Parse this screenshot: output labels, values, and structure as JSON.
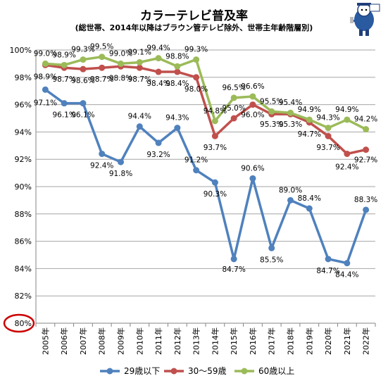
{
  "chart_data": {
    "type": "line",
    "title": "カラーテレビ普及率",
    "subtitle": "(総世帯、2014年以降はブラウン管テレビ除外、世帯主年齢階層別)",
    "x": [
      "2005年",
      "2006年",
      "2007年",
      "2008年",
      "2009年",
      "2010年",
      "2011年",
      "2012年",
      "2013年",
      "2014年",
      "2015年",
      "2016年",
      "2017年",
      "2018年",
      "2019年",
      "2020年",
      "2021年",
      "2022年"
    ],
    "y_ticks": [
      "80%",
      "82%",
      "84%",
      "86%",
      "88%",
      "90%",
      "92%",
      "94%",
      "96%",
      "98%",
      "100%"
    ],
    "ylim": [
      80,
      100
    ],
    "y_unit": "%",
    "grid": true,
    "legend_position": "bottom",
    "series": [
      {
        "name": "29歳以下",
        "color": "#4f81bd",
        "values": [
          97.1,
          96.1,
          96.1,
          92.4,
          91.8,
          94.4,
          93.2,
          94.3,
          91.2,
          90.3,
          84.7,
          90.6,
          85.5,
          89.0,
          88.4,
          84.7,
          84.4,
          88.3
        ],
        "labels": [
          "97.1%",
          "96.1%",
          "96.1%",
          "92.4%",
          "91.8%",
          "94.4%",
          "93.2%",
          "94.3%",
          "91.2%",
          "90.3%",
          "84.7%",
          "90.6%",
          "85.5%",
          "89.0%",
          "88.4%",
          "84.7%",
          "84.4%",
          "88.3%"
        ]
      },
      {
        "name": "30～59歳",
        "color": "#c0504d",
        "values": [
          98.9,
          98.7,
          98.6,
          98.7,
          98.8,
          98.7,
          98.4,
          98.4,
          98.0,
          93.7,
          95.0,
          96.0,
          95.3,
          95.3,
          94.7,
          93.7,
          92.4,
          92.7
        ],
        "labels": [
          "98.9%",
          "98.7%",
          "98.6%",
          "98.7%",
          "98.8%",
          "98.7%",
          "98.4%",
          "98.4%",
          "98.0%",
          "93.7%",
          "95.0%",
          "96.0%",
          "95.3%",
          "95.3%",
          "94.7%",
          "93.7%",
          "92.4%",
          "92.7%"
        ]
      },
      {
        "name": "60歳以上",
        "color": "#9bbb59",
        "values": [
          99.0,
          98.9,
          99.3,
          99.5,
          99.0,
          99.1,
          99.4,
          98.8,
          99.3,
          94.8,
          96.5,
          96.6,
          95.5,
          95.4,
          94.9,
          94.3,
          94.9,
          94.2
        ],
        "labels": [
          "99.0%",
          "98.9%",
          "99.3%",
          "99.5%",
          "99.0%",
          "99.1%",
          "99.4%",
          "98.8%",
          "99.3%",
          "94.8%",
          "96.5%",
          "96.6%",
          "95.5%",
          "95.4%",
          "94.9%",
          "94.3%",
          "94.9%",
          "94.2%"
        ]
      }
    ],
    "annotations": [
      {
        "type": "circle",
        "target": "80%",
        "color": "#cc0000"
      }
    ]
  }
}
